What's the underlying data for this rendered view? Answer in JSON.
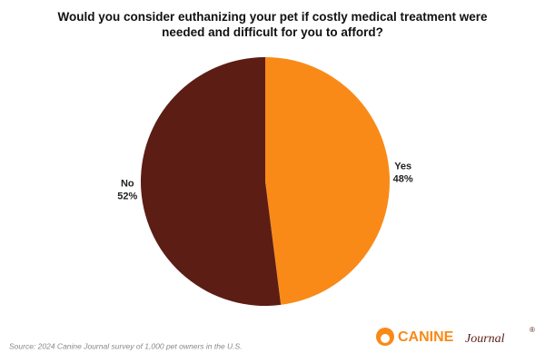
{
  "chart_data": {
    "type": "pie",
    "title": "Would you consider euthanizing your pet if costly medical treatment were needed and difficult for you to afford?",
    "categories": [
      "Yes",
      "No"
    ],
    "values": [
      48,
      52
    ],
    "value_labels": [
      "48%",
      "52%"
    ],
    "colors": [
      "#F98A18",
      "#5C1D15"
    ],
    "source": "Source: 2024 Canine Journal survey of 1,000 pet owners in the U.S.",
    "logo": {
      "brand": "CANINE",
      "suffix": "Journal",
      "mark": "®"
    }
  }
}
